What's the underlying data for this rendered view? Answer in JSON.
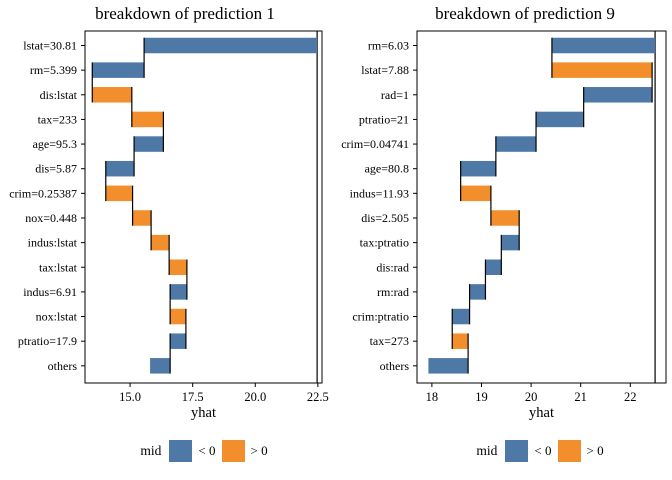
{
  "colors": {
    "negative": "#4e79a7",
    "positive": "#f28e2b",
    "line": "#000000"
  },
  "legend": {
    "title": "mid",
    "items": [
      {
        "label": "< 0",
        "color": "#4e79a7",
        "sign": "<0"
      },
      {
        "label": "> 0",
        "color": "#f28e2b",
        "sign": ">0"
      }
    ]
  },
  "chart_data": [
    {
      "type": "waterfall-bar",
      "title": "breakdown of prediction 1",
      "xlabel": "yhat",
      "xlim": [
        13.2,
        22.665
      ],
      "intercept": 22.47,
      "final_prediction": 15.8,
      "xticks": [
        {
          "value": 15.0,
          "label": "15.0"
        },
        {
          "value": 17.5,
          "label": "17.5"
        },
        {
          "value": 20.0,
          "label": "20.0"
        },
        {
          "value": 22.5,
          "label": "22.5"
        }
      ],
      "rows": [
        {
          "label": "lstat=30.81",
          "start": 22.47,
          "end": 15.56,
          "sign": "<0"
        },
        {
          "label": "rm=5.399",
          "start": 15.56,
          "end": 13.49,
          "sign": "<0"
        },
        {
          "label": "dis:lstat",
          "start": 13.49,
          "end": 15.07,
          "sign": ">0"
        },
        {
          "label": "tax=233",
          "start": 15.07,
          "end": 16.33,
          "sign": ">0"
        },
        {
          "label": "age=95.3",
          "start": 16.33,
          "end": 15.16,
          "sign": "<0"
        },
        {
          "label": "dis=5.87",
          "start": 15.16,
          "end": 14.03,
          "sign": "<0"
        },
        {
          "label": "crim=0.25387",
          "start": 14.03,
          "end": 15.1,
          "sign": ">0"
        },
        {
          "label": "nox=0.448",
          "start": 15.1,
          "end": 15.84,
          "sign": ">0"
        },
        {
          "label": "indus:lstat",
          "start": 15.84,
          "end": 16.56,
          "sign": ">0"
        },
        {
          "label": "tax:lstat",
          "start": 16.56,
          "end": 17.27,
          "sign": ">0"
        },
        {
          "label": "indus=6.91",
          "start": 17.27,
          "end": 16.6,
          "sign": "<0"
        },
        {
          "label": "nox:lstat",
          "start": 16.6,
          "end": 17.23,
          "sign": ">0"
        },
        {
          "label": "ptratio=17.9",
          "start": 17.23,
          "end": 16.6,
          "sign": "<0"
        },
        {
          "label": "others",
          "start": 16.6,
          "end": 15.8,
          "sign": "<0"
        }
      ]
    },
    {
      "type": "waterfall-bar",
      "title": "breakdown of prediction 9",
      "xlabel": "yhat",
      "xlim": [
        17.7,
        22.72
      ],
      "intercept": 22.5,
      "final_prediction": 17.93,
      "xticks": [
        {
          "value": 18,
          "label": "18"
        },
        {
          "value": 19,
          "label": "19"
        },
        {
          "value": 20,
          "label": "20"
        },
        {
          "value": 21,
          "label": "21"
        },
        {
          "value": 22,
          "label": "22"
        }
      ],
      "rows": [
        {
          "label": "rm=6.03",
          "start": 22.5,
          "end": 20.42,
          "sign": "<0"
        },
        {
          "label": "lstat=7.88",
          "start": 20.42,
          "end": 22.44,
          "sign": ">0"
        },
        {
          "label": "rad=1",
          "start": 22.44,
          "end": 21.06,
          "sign": "<0"
        },
        {
          "label": "ptratio=21",
          "start": 21.06,
          "end": 20.1,
          "sign": "<0"
        },
        {
          "label": "crim=0.04741",
          "start": 20.1,
          "end": 19.29,
          "sign": "<0"
        },
        {
          "label": "age=80.8",
          "start": 19.29,
          "end": 18.58,
          "sign": "<0"
        },
        {
          "label": "indus=11.93",
          "start": 18.58,
          "end": 19.19,
          "sign": ">0"
        },
        {
          "label": "dis=2.505",
          "start": 19.19,
          "end": 19.76,
          "sign": ">0"
        },
        {
          "label": "tax:ptratio",
          "start": 19.76,
          "end": 19.4,
          "sign": "<0"
        },
        {
          "label": "dis:rad",
          "start": 19.4,
          "end": 19.08,
          "sign": "<0"
        },
        {
          "label": "rm:rad",
          "start": 19.08,
          "end": 18.76,
          "sign": "<0"
        },
        {
          "label": "crim:ptratio",
          "start": 18.76,
          "end": 18.41,
          "sign": "<0"
        },
        {
          "label": "tax=273",
          "start": 18.41,
          "end": 18.73,
          "sign": ">0"
        },
        {
          "label": "others",
          "start": 18.73,
          "end": 17.93,
          "sign": "<0"
        }
      ]
    }
  ]
}
